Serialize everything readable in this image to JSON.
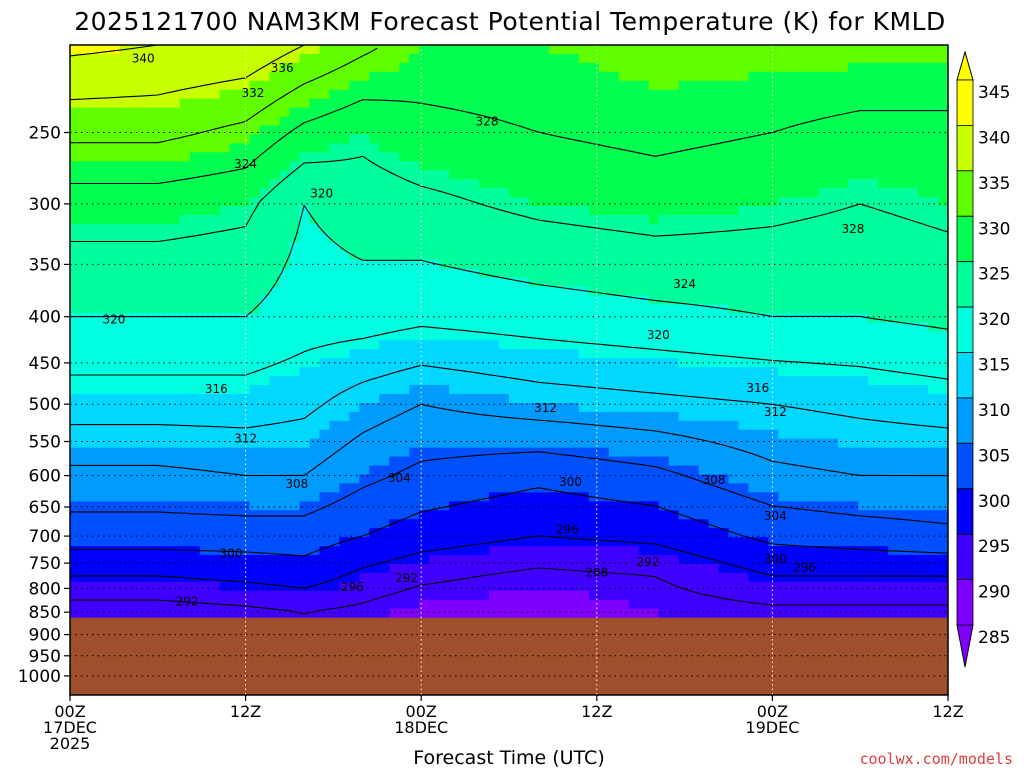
{
  "title": "2025121700 NAM3KM Forecast Potential Temperature (K) for KMLD",
  "xlabel": "Forecast Time (UTC)",
  "credit": "coolwx.com/models",
  "colors": {
    "ground": "#a04f2d",
    "bands": [
      "#8000ff",
      "#4000ff",
      "#0000ff",
      "#0050ff",
      "#009bff",
      "#00d8ff",
      "#00ffe0",
      "#00ff9c",
      "#00ff50",
      "#60ff00",
      "#c8ff00",
      "#ffff00"
    ],
    "colorbar_under": "#8000ff",
    "colorbar_over": "#ffff00"
  },
  "chart_data": {
    "type": "heatmap",
    "title": "2025121700 NAM3KM Forecast Potential Temperature (K) for KMLD",
    "xlabel": "Forecast Time (UTC)",
    "ylabel": "",
    "x_range_hours": [
      0,
      60
    ],
    "x_ticks": [
      {
        "hour": 0,
        "lines": [
          "00Z",
          "17DEC",
          "2025"
        ]
      },
      {
        "hour": 12,
        "lines": [
          "12Z"
        ]
      },
      {
        "hour": 24,
        "lines": [
          "00Z",
          "18DEC"
        ]
      },
      {
        "hour": 36,
        "lines": [
          "12Z"
        ]
      },
      {
        "hour": 48,
        "lines": [
          "00Z",
          "19DEC"
        ]
      },
      {
        "hour": 60,
        "lines": [
          "12Z"
        ]
      }
    ],
    "y_scale": "log",
    "y_range_hPa": [
      1050,
      200
    ],
    "y_ticks": [
      250,
      300,
      350,
      400,
      450,
      500,
      550,
      600,
      650,
      700,
      750,
      800,
      850,
      900,
      950,
      1000
    ],
    "surface_pressure_hPa": 862,
    "grid": "dotted",
    "colorbar": {
      "levels": [
        285,
        290,
        295,
        300,
        305,
        310,
        315,
        320,
        325,
        330,
        335,
        340,
        345
      ],
      "labels": [
        "345",
        "340",
        "335",
        "330",
        "325",
        "320",
        "315",
        "310",
        "305",
        "300",
        "295",
        "290",
        "285"
      ]
    },
    "theta_profiles": [
      {
        "hour": 0,
        "points": [
          {
            "p": 850,
            "theta": 290
          },
          {
            "p": 775,
            "theta": 296
          },
          {
            "p": 700,
            "theta": 302
          },
          {
            "p": 600,
            "theta": 307
          },
          {
            "p": 500,
            "theta": 314
          },
          {
            "p": 400,
            "theta": 320
          },
          {
            "p": 300,
            "theta": 326
          },
          {
            "p": 250,
            "theta": 333
          },
          {
            "p": 200,
            "theta": 341
          }
        ]
      },
      {
        "hour": 6,
        "points": [
          {
            "p": 850,
            "theta": 290
          },
          {
            "p": 775,
            "theta": 296
          },
          {
            "p": 700,
            "theta": 302
          },
          {
            "p": 600,
            "theta": 307
          },
          {
            "p": 500,
            "theta": 314
          },
          {
            "p": 400,
            "theta": 320
          },
          {
            "p": 300,
            "theta": 326
          },
          {
            "p": 250,
            "theta": 333
          },
          {
            "p": 200,
            "theta": 340
          }
        ]
      },
      {
        "hour": 12,
        "points": [
          {
            "p": 850,
            "theta": 291
          },
          {
            "p": 775,
            "theta": 297
          },
          {
            "p": 700,
            "theta": 302
          },
          {
            "p": 600,
            "theta": 308
          },
          {
            "p": 500,
            "theta": 314
          },
          {
            "p": 400,
            "theta": 320
          },
          {
            "p": 300,
            "theta": 325
          },
          {
            "p": 250,
            "theta": 331
          },
          {
            "p": 200,
            "theta": 339
          }
        ]
      },
      {
        "hour": 16,
        "points": [
          {
            "p": 850,
            "theta": 292
          },
          {
            "p": 775,
            "theta": 298
          },
          {
            "p": 700,
            "theta": 302
          },
          {
            "p": 600,
            "theta": 308
          },
          {
            "p": 500,
            "theta": 313
          },
          {
            "p": 400,
            "theta": 318
          },
          {
            "p": 300,
            "theta": 320
          },
          {
            "p": 250,
            "theta": 327
          },
          {
            "p": 200,
            "theta": 336
          }
        ]
      },
      {
        "hour": 20,
        "points": [
          {
            "p": 850,
            "theta": 291
          },
          {
            "p": 775,
            "theta": 295
          },
          {
            "p": 700,
            "theta": 300
          },
          {
            "p": 600,
            "theta": 305
          },
          {
            "p": 500,
            "theta": 310
          },
          {
            "p": 400,
            "theta": 318
          },
          {
            "p": 300,
            "theta": 322
          },
          {
            "p": 250,
            "theta": 325
          },
          {
            "p": 200,
            "theta": 333
          }
        ]
      },
      {
        "hour": 24,
        "points": [
          {
            "p": 850,
            "theta": 289
          },
          {
            "p": 775,
            "theta": 293
          },
          {
            "p": 700,
            "theta": 298
          },
          {
            "p": 600,
            "theta": 303
          },
          {
            "p": 500,
            "theta": 308
          },
          {
            "p": 400,
            "theta": 317
          },
          {
            "p": 300,
            "theta": 323
          },
          {
            "p": 250,
            "theta": 327
          },
          {
            "p": 200,
            "theta": 330
          }
        ]
      },
      {
        "hour": 32,
        "points": [
          {
            "p": 850,
            "theta": 288
          },
          {
            "p": 775,
            "theta": 291
          },
          {
            "p": 700,
            "theta": 296
          },
          {
            "p": 600,
            "theta": 301
          },
          {
            "p": 500,
            "theta": 310
          },
          {
            "p": 400,
            "theta": 318
          },
          {
            "p": 300,
            "theta": 325
          },
          {
            "p": 250,
            "theta": 328
          },
          {
            "p": 200,
            "theta": 330
          }
        ]
      },
      {
        "hour": 40,
        "points": [
          {
            "p": 850,
            "theta": 290
          },
          {
            "p": 775,
            "theta": 292
          },
          {
            "p": 700,
            "theta": 297
          },
          {
            "p": 600,
            "theta": 303
          },
          {
            "p": 500,
            "theta": 311
          },
          {
            "p": 400,
            "theta": 319
          },
          {
            "p": 300,
            "theta": 326
          },
          {
            "p": 250,
            "theta": 329
          },
          {
            "p": 200,
            "theta": 331
          }
        ]
      },
      {
        "hour": 48,
        "points": [
          {
            "p": 850,
            "theta": 291
          },
          {
            "p": 775,
            "theta": 296
          },
          {
            "p": 700,
            "theta": 301
          },
          {
            "p": 600,
            "theta": 307
          },
          {
            "p": 500,
            "theta": 312
          },
          {
            "p": 400,
            "theta": 320
          },
          {
            "p": 300,
            "theta": 325
          },
          {
            "p": 250,
            "theta": 328
          },
          {
            "p": 200,
            "theta": 331
          }
        ]
      },
      {
        "hour": 54,
        "points": [
          {
            "p": 850,
            "theta": 291
          },
          {
            "p": 775,
            "theta": 296
          },
          {
            "p": 700,
            "theta": 302
          },
          {
            "p": 600,
            "theta": 308
          },
          {
            "p": 500,
            "theta": 313
          },
          {
            "p": 400,
            "theta": 320
          },
          {
            "p": 300,
            "theta": 324
          },
          {
            "p": 250,
            "theta": 327
          },
          {
            "p": 200,
            "theta": 331
          }
        ]
      },
      {
        "hour": 60,
        "points": [
          {
            "p": 850,
            "theta": 291
          },
          {
            "p": 775,
            "theta": 296
          },
          {
            "p": 700,
            "theta": 303
          },
          {
            "p": 600,
            "theta": 308
          },
          {
            "p": 500,
            "theta": 314
          },
          {
            "p": 400,
            "theta": 321
          },
          {
            "p": 300,
            "theta": 325
          },
          {
            "p": 250,
            "theta": 327
          },
          {
            "p": 200,
            "theta": 331
          }
        ]
      }
    ],
    "contour_labels": [
      {
        "value": "340",
        "hour": 5,
        "p": 207
      },
      {
        "value": "336",
        "hour": 14.5,
        "p": 212
      },
      {
        "value": "332",
        "hour": 12.5,
        "p": 226
      },
      {
        "value": "328",
        "hour": 28.5,
        "p": 243
      },
      {
        "value": "324",
        "hour": 12,
        "p": 271
      },
      {
        "value": "320",
        "hour": 17.2,
        "p": 292
      },
      {
        "value": "328",
        "hour": 53.5,
        "p": 320
      },
      {
        "value": "324",
        "hour": 42,
        "p": 368
      },
      {
        "value": "320",
        "hour": 3,
        "p": 403
      },
      {
        "value": "320",
        "hour": 40.2,
        "p": 419
      },
      {
        "value": "316",
        "hour": 10,
        "p": 481
      },
      {
        "value": "316",
        "hour": 47,
        "p": 480
      },
      {
        "value": "312",
        "hour": 32.5,
        "p": 505
      },
      {
        "value": "312",
        "hour": 48.2,
        "p": 510
      },
      {
        "value": "312",
        "hour": 12,
        "p": 546
      },
      {
        "value": "308",
        "hour": 15.5,
        "p": 613
      },
      {
        "value": "304",
        "hour": 22.5,
        "p": 604
      },
      {
        "value": "300",
        "hour": 34.2,
        "p": 610
      },
      {
        "value": "308",
        "hour": 44,
        "p": 607
      },
      {
        "value": "304",
        "hour": 48.2,
        "p": 665
      },
      {
        "value": "296",
        "hour": 34,
        "p": 688
      },
      {
        "value": "300",
        "hour": 11,
        "p": 732
      },
      {
        "value": "292",
        "hour": 39.5,
        "p": 748
      },
      {
        "value": "288",
        "hour": 36,
        "p": 768
      },
      {
        "value": "300",
        "hour": 48.2,
        "p": 742
      },
      {
        "value": "296",
        "hour": 50.2,
        "p": 758
      },
      {
        "value": "296",
        "hour": 19.3,
        "p": 797
      },
      {
        "value": "292",
        "hour": 23,
        "p": 779
      },
      {
        "value": "292",
        "hour": 8,
        "p": 827
      }
    ]
  }
}
